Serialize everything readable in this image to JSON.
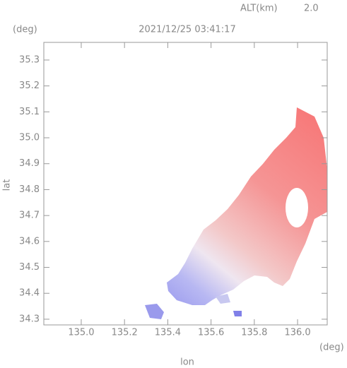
{
  "chart_data": {
    "type": "map",
    "title": "2021/12/25 03:41:17",
    "altitude_label": "ALT(km)",
    "altitude_value": "2.0",
    "x_label": "lon",
    "y_label": "lat",
    "x_unit": "(deg)",
    "y_unit": "(deg)",
    "xlim": [
      134.827,
      136.137
    ],
    "ylim": [
      34.278,
      35.368
    ],
    "xticks": [
      {
        "value": 135.0,
        "label": "135.0"
      },
      135.2,
      135.4,
      135.6,
      135.8,
      {
        "value": 136.0,
        "label": "136.0"
      }
    ],
    "yticks": [
      34.3,
      34.4,
      34.5,
      34.6,
      34.7,
      34.8,
      34.9,
      {
        "value": 35.0,
        "label": "35.0"
      },
      35.1,
      35.2,
      35.3
    ],
    "grid": false
  }
}
